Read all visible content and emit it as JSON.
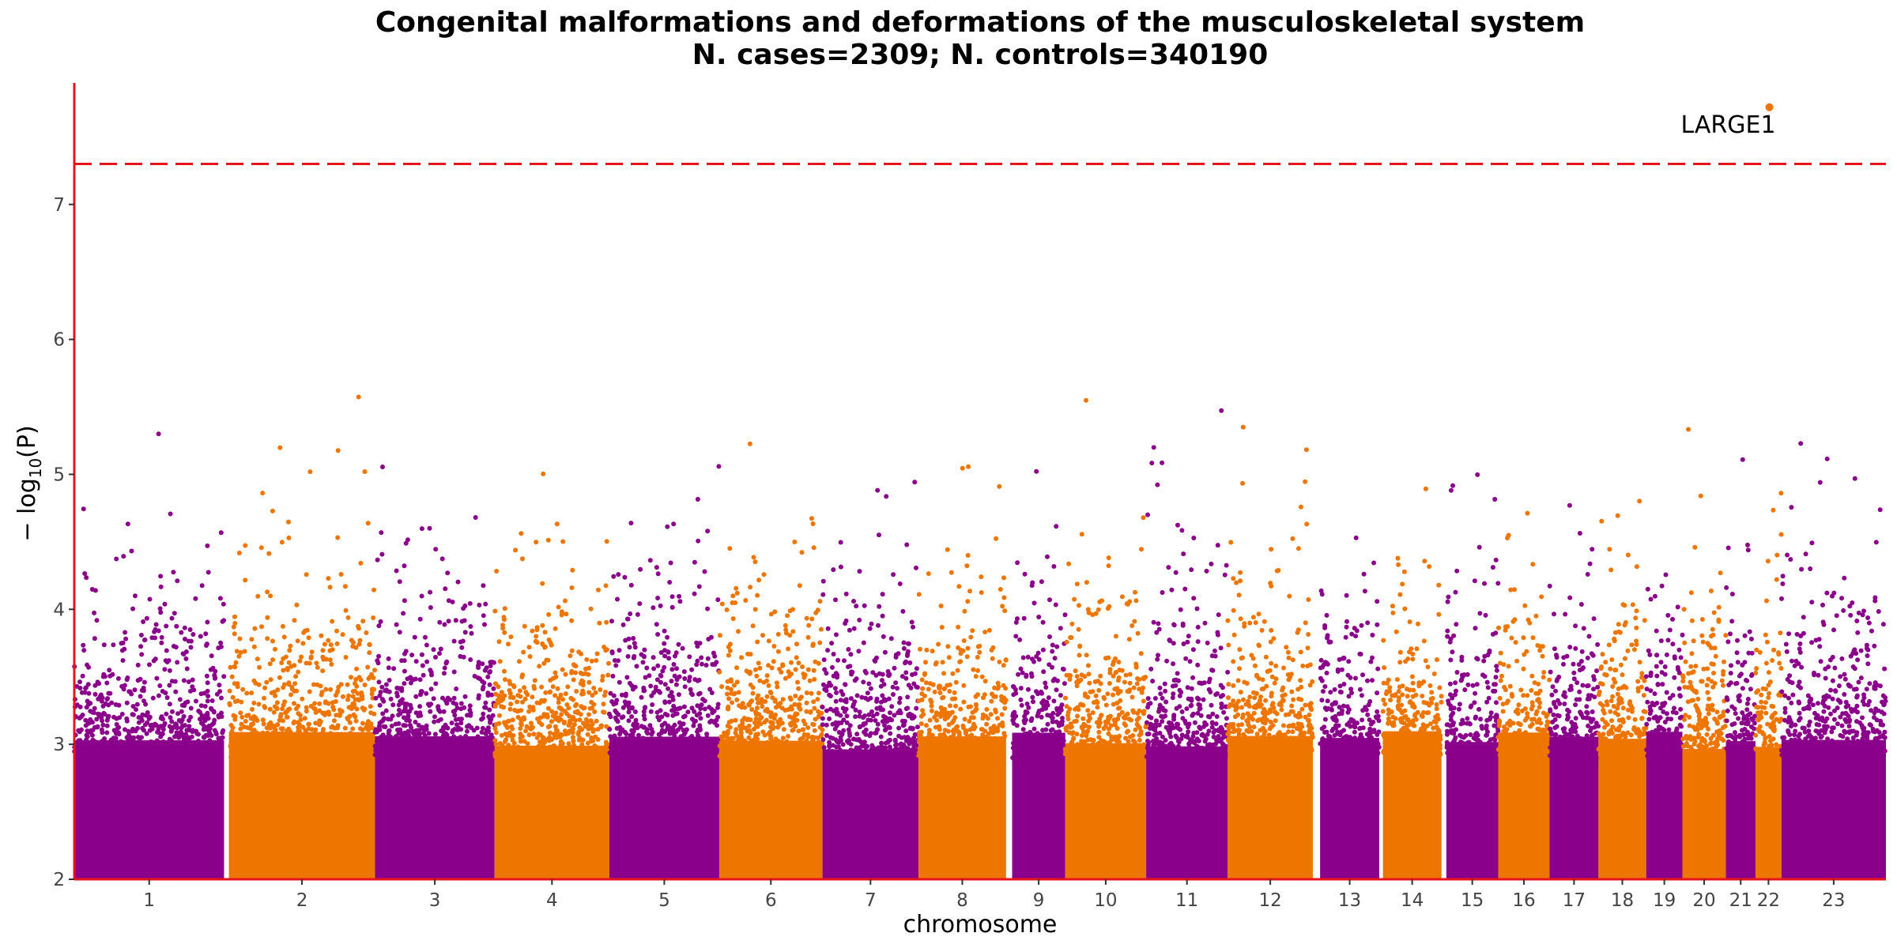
{
  "chart_data": {
    "type": "scatter",
    "title": "Congenital malformations and deformations of the musculoskeletal system",
    "subtitle": "N. cases=2309; N. controls=340190",
    "xlabel": "chromosome",
    "ylabel_prefix": "− log",
    "ylabel_sub": "10",
    "ylabel_suffix": "(P)",
    "ylim": [
      2,
      7.9
    ],
    "yticks": [
      "2",
      "3",
      "4",
      "5",
      "6",
      "7"
    ],
    "threshold": 7.3,
    "grid": false,
    "colors": {
      "odd": "#8b008b",
      "even": "#ee7600",
      "threshold": "#e8141c",
      "axis": "#e8141c"
    },
    "chromosomes": [
      {
        "label": "1",
        "start": 0,
        "end": 248
      },
      {
        "label": "2",
        "start": 256,
        "end": 498
      },
      {
        "label": "3",
        "start": 498,
        "end": 696
      },
      {
        "label": "4",
        "start": 696,
        "end": 886
      },
      {
        "label": "5",
        "start": 886,
        "end": 1068
      },
      {
        "label": "6",
        "start": 1068,
        "end": 1239
      },
      {
        "label": "7",
        "start": 1239,
        "end": 1398
      },
      {
        "label": "8",
        "start": 1398,
        "end": 1543
      },
      {
        "label": "9",
        "start": 1553,
        "end": 1641
      },
      {
        "label": "10",
        "start": 1641,
        "end": 1775
      },
      {
        "label": "11",
        "start": 1775,
        "end": 1910
      },
      {
        "label": "12",
        "start": 1910,
        "end": 2051
      },
      {
        "label": "13",
        "start": 2063,
        "end": 2161
      },
      {
        "label": "14",
        "start": 2167,
        "end": 2264
      },
      {
        "label": "15",
        "start": 2272,
        "end": 2358
      },
      {
        "label": "16",
        "start": 2358,
        "end": 2443
      },
      {
        "label": "17",
        "start": 2443,
        "end": 2524
      },
      {
        "label": "18",
        "start": 2524,
        "end": 2603
      },
      {
        "label": "19",
        "start": 2603,
        "end": 2663
      },
      {
        "label": "20",
        "start": 2663,
        "end": 2735
      },
      {
        "label": "21",
        "start": 2735,
        "end": 2784
      },
      {
        "label": "22",
        "start": 2784,
        "end": 2827
      },
      {
        "label": "23",
        "start": 2827,
        "end": 3000
      }
    ],
    "xlim": [
      0,
      3000
    ],
    "annotations": [
      {
        "label": "LARGE1",
        "chromosome": "22",
        "x": 2807,
        "y": 7.72
      }
    ]
  }
}
